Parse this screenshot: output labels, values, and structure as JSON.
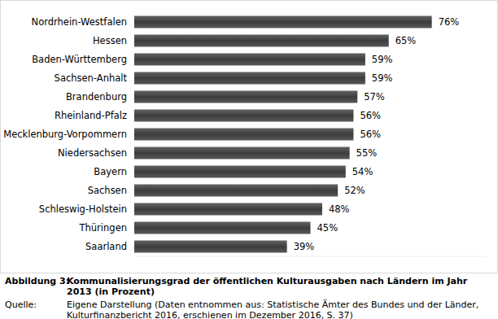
{
  "chart_data": {
    "type": "bar",
    "orientation": "horizontal",
    "categories": [
      "Nordrhein-Westfalen",
      "Hessen",
      "Baden-Württemberg",
      "Sachsen-Anhalt",
      "Brandenburg",
      "Rheinland-Pfalz",
      "Mecklenburg-Vorpommern",
      "Niedersachsen",
      "Bayern",
      "Sachsen",
      "Schleswig-Holstein",
      "Thüringen",
      "Saarland"
    ],
    "values": [
      76,
      65,
      59,
      59,
      57,
      56,
      56,
      55,
      54,
      52,
      48,
      45,
      39
    ],
    "value_labels": [
      "76%",
      "65%",
      "59%",
      "59%",
      "57%",
      "56%",
      "56%",
      "55%",
      "54%",
      "52%",
      "48%",
      "45%",
      "39%"
    ],
    "color": "#3c3c3c",
    "xlim": [
      0,
      90
    ],
    "grid": false,
    "data_labels": true,
    "tick_labels": "y"
  },
  "caption": {
    "label": "Abbildung 3:",
    "text": "Kommunalisierungsgrad der öffentlichen Kulturausgaben nach Ländern im Jahr 2013 (in Prozent)",
    "source_label": "Quelle:",
    "source": "Eigene Darstellung (Daten entnommen aus: Statistische Ämter des Bundes und der Länder, Kulturfinanzbericht 2016, erschienen im Dezember 2016, S. 37)"
  }
}
